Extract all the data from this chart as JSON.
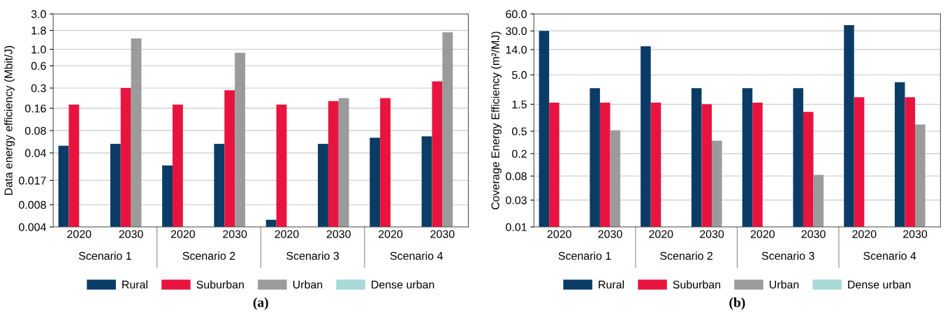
{
  "chart_data": [
    {
      "type": "bar",
      "title": "(a)",
      "ylabel": "Data energy efficiency (Mbit/J)",
      "categories": [
        "2020",
        "2030",
        "2020",
        "2030",
        "2020",
        "2030",
        "2020",
        "2030"
      ],
      "annotations": [
        "Scenario 1",
        "Scenario 2",
        "Scenario 3",
        "Scenario 4"
      ],
      "series": [
        {
          "name": "Rural",
          "color": "#0b3c66",
          "values": [
            0.05,
            0.053,
            0.027,
            0.053,
            0.005,
            0.053,
            0.064,
            0.067
          ]
        },
        {
          "name": "Suburban",
          "color": "#e8143f",
          "values": [
            0.18,
            0.3,
            0.18,
            0.28,
            0.18,
            0.2,
            0.22,
            0.37
          ]
        },
        {
          "name": "Urban",
          "color": "#9b9b9b",
          "values": [
            null,
            1.4,
            null,
            0.9,
            null,
            0.22,
            null,
            1.7
          ]
        },
        {
          "name": "Dense urban",
          "color": "#a8d8d8",
          "values": [
            null,
            null,
            null,
            null,
            null,
            null,
            null,
            null
          ]
        }
      ],
      "log": true,
      "ylim": [
        0.004,
        3
      ],
      "yticks": [
        0.004,
        0.008,
        0.017,
        0.04,
        0.08,
        0.16,
        0.3,
        0.6,
        {
          "value": 1,
          "label": "1.0"
        },
        1.8,
        {
          "value": 3,
          "label": "3.0"
        }
      ],
      "grid": "y",
      "legend": "bottom"
    },
    {
      "type": "bar",
      "title": "(b)",
      "ylabel": "Coverage Energy Efficiency (m²/MJ)",
      "categories": [
        "2020",
        "2030",
        "2020",
        "2030",
        "2020",
        "2030",
        "2020",
        "2030"
      ],
      "annotations": [
        "Scenario 1",
        "Scenario 2",
        "Scenario 3",
        "Scenario 4"
      ],
      "series": [
        {
          "name": "Rural",
          "color": "#0b3c66",
          "values": [
            30,
            2.9,
            16,
            2.9,
            2.9,
            2.9,
            38,
            3.7
          ]
        },
        {
          "name": "Suburban",
          "color": "#e8143f",
          "values": [
            1.6,
            1.6,
            1.6,
            1.5,
            1.6,
            1.1,
            2,
            2
          ]
        },
        {
          "name": "Urban",
          "color": "#9b9b9b",
          "values": [
            null,
            0.52,
            null,
            0.34,
            null,
            0.084,
            null,
            0.66
          ]
        },
        {
          "name": "Dense urban",
          "color": "#a8d8d8",
          "values": [
            null,
            null,
            null,
            null,
            null,
            null,
            null,
            null
          ]
        }
      ],
      "log": true,
      "ylim": [
        0.01,
        60
      ],
      "yticks": [
        0.01,
        0.03,
        0.08,
        0.2,
        0.5,
        1.5,
        {
          "value": 5,
          "label": "5.0"
        },
        {
          "value": 14,
          "label": "14.0"
        },
        {
          "value": 30,
          "label": "30.0"
        },
        {
          "value": 60,
          "label": "60.0"
        }
      ],
      "grid": "y",
      "legend": "bottom"
    }
  ]
}
